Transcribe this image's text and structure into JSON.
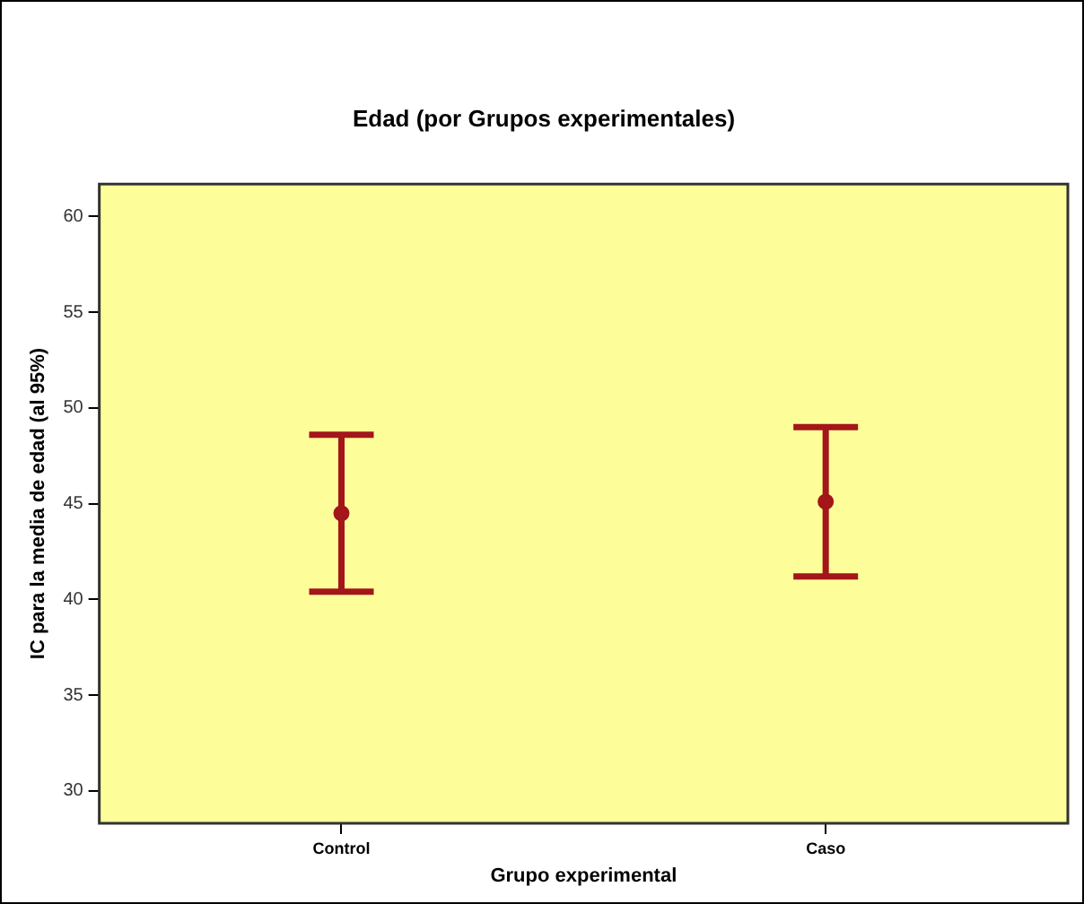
{
  "chart_data": {
    "type": "scatter",
    "title": "Edad (por Grupos experimentales)",
    "xlabel": "Grupo experimental",
    "ylabel": "IC para la media de edad (al 95%)",
    "categories": [
      "Control",
      "Caso"
    ],
    "series": [
      {
        "color": "#a3161a",
        "values": [
          44.5,
          45.1
        ],
        "errors": [
          [
            40.4,
            48.6
          ],
          [
            41.2,
            49.0
          ]
        ]
      }
    ],
    "ylim": [
      28.3,
      61.7
    ],
    "yticks": [
      30,
      35,
      40,
      45,
      50,
      55,
      60
    ],
    "grid": false,
    "legend": false,
    "marker": "circle"
  }
}
